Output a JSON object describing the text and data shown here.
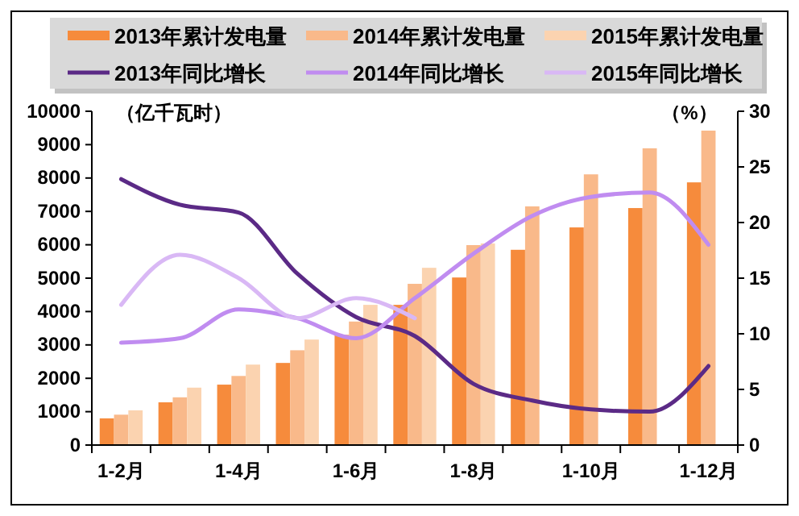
{
  "chart_data": {
    "type": "bar",
    "ylabel": "（亿千瓦时）",
    "y2label": "（%）",
    "categories": [
      "1-2月",
      null,
      "1-4月",
      null,
      "1-6月",
      null,
      "1-8月",
      null,
      "1-10月",
      null,
      "1-12月"
    ],
    "series": [
      {
        "name": "2013年累计发电量",
        "color": "#f68b3c",
        "values": [
          800,
          1280,
          1810,
          2460,
          3300,
          4200,
          5020,
          5850,
          6520,
          7100,
          7870
        ]
      },
      {
        "name": "2014年累计发电量",
        "color": "#f9b98a",
        "values": [
          910,
          1430,
          2070,
          2840,
          3700,
          4830,
          5990,
          7150,
          8110,
          8890,
          9420
        ]
      },
      {
        "name": "2015年累计发电量",
        "color": "#fbd3b0",
        "values": [
          1040,
          1720,
          2410,
          3160,
          4200,
          5310,
          6040,
          null,
          null,
          null,
          null
        ]
      },
      {
        "name": "2013年同比增长",
        "type": "line",
        "axis": "y2",
        "color": "#5b2a86",
        "values": [
          23.9,
          21.6,
          20.9,
          15.4,
          11.5,
          9.8,
          5.5,
          4.0,
          3.2,
          3.0,
          7.1
        ]
      },
      {
        "name": "2014年同比增长",
        "type": "line",
        "axis": "y2",
        "color": "#c08cf0",
        "values": [
          9.2,
          9.6,
          12.2,
          11.4,
          9.6,
          13.2,
          17.2,
          20.6,
          22.3,
          22.7,
          18.0
        ]
      },
      {
        "name": "2015年同比增长",
        "type": "line",
        "axis": "y2",
        "color": "#d9b8f5",
        "values": [
          12.6,
          17.1,
          15.0,
          11.4,
          13.2,
          11.4,
          null,
          null,
          null,
          null,
          null
        ]
      }
    ],
    "ylim": [
      0,
      10000
    ],
    "yticks": [
      0,
      1000,
      2000,
      3000,
      4000,
      5000,
      6000,
      7000,
      8000,
      9000,
      10000
    ],
    "y2lim": [
      0,
      30
    ],
    "y2ticks": [
      0,
      5,
      10,
      15,
      20,
      25,
      30
    ],
    "legend": "top",
    "grid": false,
    "line_style": "solid",
    "marker": "none"
  }
}
